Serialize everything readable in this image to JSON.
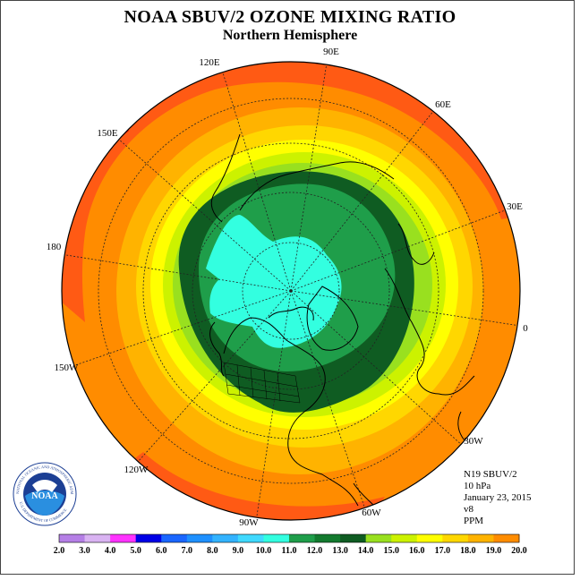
{
  "title": "NOAA SBUV/2 OZONE MIXING RATIO",
  "subtitle": "Northern Hemisphere",
  "longitude_labels": [
    "90E",
    "60E",
    "30E",
    "0",
    "30W",
    "60W",
    "90W",
    "120W",
    "150W",
    "180",
    "150E",
    "120E"
  ],
  "info": {
    "satellite": "N19 SBUV/2",
    "level": "10 hPa",
    "date": "January 23, 2015",
    "version": "v8",
    "units": "PPM"
  },
  "logo": {
    "text": "NOAA",
    "ring_text": "NATIONAL OCEANIC AND ATMOSPHERIC ADMINISTRATION",
    "bottom_text": "U.S. DEPARTMENT OF COMMERCE"
  },
  "colorbar": {
    "labels": [
      "2.0",
      "3.0",
      "4.0",
      "5.0",
      "6.0",
      "7.0",
      "8.0",
      "9.0",
      "10.0",
      "11.0",
      "12.0",
      "13.0",
      "14.0",
      "15.0",
      "16.0",
      "17.0",
      "18.0",
      "19.0",
      "20.0"
    ],
    "colors": [
      "#b57fe6",
      "#d9b3f2",
      "#ff33ff",
      "#0000e6",
      "#1a66ff",
      "#1e90ff",
      "#33b3ff",
      "#40d9ff",
      "#33ffe0",
      "#1f9e4a",
      "#137a2e",
      "#0f5c22",
      "#99e01f",
      "#ccf200",
      "#ffff00",
      "#ffd700",
      "#ffb300",
      "#ff8c00",
      "#ff5a14",
      "#e60000",
      "#8b5a2b"
    ]
  },
  "map_colors": {
    "v10": "#33ffe0",
    "v11": "#1f9e4a",
    "v12": "#137a2e",
    "v12b": "#0f5c22",
    "v13": "#99e01f",
    "v14": "#ccf200",
    "v15": "#ffff00",
    "v16": "#ffd700",
    "v17": "#ffb300",
    "v18": "#ff8c00",
    "v19": "#ff5a14",
    "v20": "#e60000"
  }
}
